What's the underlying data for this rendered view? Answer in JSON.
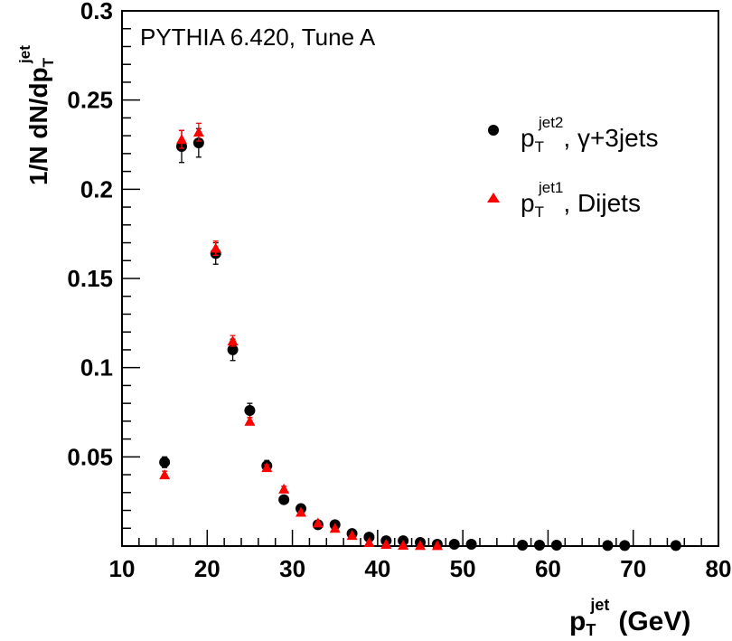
{
  "chart_data": {
    "type": "scatter",
    "annotation": "PYTHIA 6.420, Tune A",
    "xlabel": {
      "main": "p",
      "sup": "jet",
      "sub": "T",
      "unit": "(GeV)"
    },
    "ylabel": {
      "prefix": "1/N dN/dp",
      "sup": "jet",
      "sub": "T"
    },
    "xlim": [
      10,
      80
    ],
    "ylim": [
      0,
      0.3
    ],
    "xticks": [
      "10",
      "20",
      "30",
      "40",
      "50",
      "60",
      "70",
      "80"
    ],
    "xtick_values": [
      10,
      20,
      30,
      40,
      50,
      60,
      70,
      80
    ],
    "yticks": [
      "0.05",
      "0.1",
      "0.15",
      "0.2",
      "0.25",
      "0.3"
    ],
    "ytick_values": [
      0.05,
      0.1,
      0.15,
      0.2,
      0.25,
      0.3
    ],
    "grid": false,
    "legend_position": "top-right",
    "series": [
      {
        "marker": "circle",
        "color": "#000000",
        "legend": {
          "main": "p",
          "sup": "jet2",
          "sub": "T",
          "suffix": ",  γ+3jets"
        },
        "points": [
          {
            "x": 15,
            "y": 0.047,
            "err": 0.003
          },
          {
            "x": 17,
            "y": 0.224,
            "err": 0.009
          },
          {
            "x": 19,
            "y": 0.226,
            "err": 0.008
          },
          {
            "x": 21,
            "y": 0.164,
            "err": 0.006
          },
          {
            "x": 23,
            "y": 0.11,
            "err": 0.006
          },
          {
            "x": 25,
            "y": 0.076,
            "err": 0.004
          },
          {
            "x": 27,
            "y": 0.045,
            "err": 0.003
          },
          {
            "x": 29,
            "y": 0.026,
            "err": 0.002
          },
          {
            "x": 31,
            "y": 0.021,
            "err": 0.002
          },
          {
            "x": 33,
            "y": 0.012,
            "err": 0.0015
          },
          {
            "x": 35,
            "y": 0.012,
            "err": 0.0015
          },
          {
            "x": 37,
            "y": 0.007,
            "err": 0.001
          },
          {
            "x": 39,
            "y": 0.005,
            "err": 0.001
          },
          {
            "x": 41,
            "y": 0.003,
            "err": 0.0008
          },
          {
            "x": 43,
            "y": 0.003,
            "err": 0.0008
          },
          {
            "x": 45,
            "y": 0.002,
            "err": 0.0006
          },
          {
            "x": 47,
            "y": 0.001,
            "err": 0.0005
          },
          {
            "x": 49,
            "y": 0.001,
            "err": 0.0005
          },
          {
            "x": 51,
            "y": 0.001,
            "err": 0.0005
          },
          {
            "x": 57,
            "y": 0.0005,
            "err": 0.0003
          },
          {
            "x": 59,
            "y": 0.0005,
            "err": 0.0003
          },
          {
            "x": 61,
            "y": 0.0005,
            "err": 0.0003
          },
          {
            "x": 67,
            "y": 0.0003,
            "err": 0.0002
          },
          {
            "x": 69,
            "y": 0.0003,
            "err": 0.0002
          },
          {
            "x": 75,
            "y": 0.0003,
            "err": 0.0002
          }
        ]
      },
      {
        "marker": "triangle",
        "color": "#ff0000",
        "legend": {
          "main": "p",
          "sup": "jet1",
          "sub": "T",
          "suffix": ",  Dijets"
        },
        "points": [
          {
            "x": 15,
            "y": 0.04,
            "err": 0.002
          },
          {
            "x": 17,
            "y": 0.228,
            "err": 0.005
          },
          {
            "x": 19,
            "y": 0.232,
            "err": 0.005
          },
          {
            "x": 21,
            "y": 0.167,
            "err": 0.004
          },
          {
            "x": 23,
            "y": 0.115,
            "err": 0.003
          },
          {
            "x": 25,
            "y": 0.07,
            "err": 0.002
          },
          {
            "x": 27,
            "y": 0.044,
            "err": 0.0015
          },
          {
            "x": 29,
            "y": 0.032,
            "err": 0.0015
          },
          {
            "x": 31,
            "y": 0.019,
            "err": 0.001
          },
          {
            "x": 33,
            "y": 0.013,
            "err": 0.001
          },
          {
            "x": 35,
            "y": 0.01,
            "err": 0.0008
          },
          {
            "x": 37,
            "y": 0.006,
            "err": 0.0006
          },
          {
            "x": 39,
            "y": 0.002,
            "err": 0.0004
          },
          {
            "x": 41,
            "y": 0.001,
            "err": 0.0003
          },
          {
            "x": 43,
            "y": 0.0005,
            "err": 0.0002
          },
          {
            "x": 45,
            "y": 0.0004,
            "err": 0.0002
          },
          {
            "x": 47,
            "y": 0.0003,
            "err": 0.0002
          }
        ]
      }
    ]
  }
}
